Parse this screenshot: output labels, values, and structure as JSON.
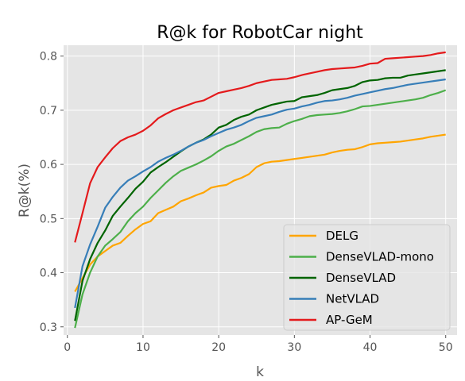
{
  "chart_data": {
    "type": "line",
    "title": "R@k for RobotCar night",
    "xlabel": "k",
    "ylabel": "R@k(%)",
    "xlim": [
      -0.5,
      51.5
    ],
    "ylim": [
      0.285,
      0.82
    ],
    "xticks": [
      0,
      10,
      20,
      30,
      40,
      50
    ],
    "yticks": [
      0.3,
      0.4,
      0.5,
      0.6,
      0.7,
      0.8
    ],
    "grid": true,
    "legend_position": "bottom-right",
    "x": [
      1,
      2,
      3,
      4,
      5,
      6,
      7,
      8,
      9,
      10,
      11,
      12,
      13,
      14,
      15,
      16,
      17,
      18,
      19,
      20,
      21,
      22,
      23,
      24,
      25,
      26,
      27,
      28,
      29,
      30,
      31,
      32,
      33,
      34,
      35,
      36,
      37,
      38,
      39,
      40,
      41,
      42,
      43,
      44,
      45,
      46,
      47,
      48,
      49,
      50
    ],
    "series": [
      {
        "name": "DELG",
        "color": "#ffa500",
        "values": [
          0.365,
          0.39,
          0.415,
          0.43,
          0.44,
          0.45,
          0.455,
          0.468,
          0.48,
          0.49,
          0.495,
          0.51,
          0.516,
          0.522,
          0.532,
          0.537,
          0.543,
          0.548,
          0.557,
          0.56,
          0.562,
          0.57,
          0.575,
          0.582,
          0.595,
          0.602,
          0.605,
          0.606,
          0.608,
          0.61,
          0.612,
          0.614,
          0.616,
          0.618,
          0.622,
          0.625,
          0.627,
          0.628,
          0.632,
          0.637,
          0.639,
          0.64,
          0.641,
          0.642,
          0.644,
          0.646,
          0.648,
          0.651,
          0.653,
          0.655
        ]
      },
      {
        "name": "DenseVLAD-mono",
        "color": "#4daf4a",
        "values": [
          0.298,
          0.36,
          0.4,
          0.43,
          0.45,
          0.462,
          0.475,
          0.495,
          0.51,
          0.522,
          0.538,
          0.552,
          0.566,
          0.578,
          0.588,
          0.594,
          0.6,
          0.607,
          0.615,
          0.625,
          0.633,
          0.638,
          0.645,
          0.652,
          0.66,
          0.665,
          0.667,
          0.668,
          0.675,
          0.68,
          0.684,
          0.689,
          0.691,
          0.692,
          0.693,
          0.695,
          0.698,
          0.702,
          0.707,
          0.708,
          0.71,
          0.712,
          0.714,
          0.716,
          0.718,
          0.72,
          0.723,
          0.728,
          0.732,
          0.737
        ]
      },
      {
        "name": "DenseVLAD",
        "color": "#006400",
        "values": [
          0.311,
          0.385,
          0.425,
          0.455,
          0.478,
          0.505,
          0.522,
          0.538,
          0.555,
          0.568,
          0.585,
          0.595,
          0.604,
          0.614,
          0.624,
          0.633,
          0.64,
          0.646,
          0.655,
          0.668,
          0.673,
          0.682,
          0.688,
          0.692,
          0.7,
          0.705,
          0.71,
          0.713,
          0.716,
          0.717,
          0.724,
          0.726,
          0.728,
          0.732,
          0.737,
          0.739,
          0.741,
          0.745,
          0.752,
          0.755,
          0.756,
          0.759,
          0.76,
          0.76,
          0.764,
          0.766,
          0.768,
          0.77,
          0.772,
          0.774
        ]
      },
      {
        "name": "NetVLAD",
        "color": "#377eb8",
        "values": [
          0.335,
          0.412,
          0.452,
          0.485,
          0.52,
          0.54,
          0.557,
          0.57,
          0.578,
          0.587,
          0.595,
          0.605,
          0.612,
          0.618,
          0.625,
          0.633,
          0.64,
          0.645,
          0.652,
          0.658,
          0.664,
          0.668,
          0.673,
          0.68,
          0.686,
          0.689,
          0.692,
          0.697,
          0.701,
          0.703,
          0.707,
          0.71,
          0.714,
          0.717,
          0.718,
          0.72,
          0.723,
          0.727,
          0.73,
          0.733,
          0.736,
          0.739,
          0.741,
          0.744,
          0.747,
          0.749,
          0.751,
          0.753,
          0.755,
          0.757
        ]
      },
      {
        "name": "AP-GeM",
        "color": "#e41a1c",
        "values": [
          0.456,
          0.51,
          0.565,
          0.595,
          0.613,
          0.63,
          0.643,
          0.65,
          0.655,
          0.662,
          0.672,
          0.685,
          0.693,
          0.7,
          0.705,
          0.71,
          0.715,
          0.718,
          0.725,
          0.732,
          0.735,
          0.738,
          0.741,
          0.745,
          0.75,
          0.753,
          0.756,
          0.757,
          0.758,
          0.761,
          0.765,
          0.768,
          0.771,
          0.774,
          0.776,
          0.777,
          0.778,
          0.779,
          0.782,
          0.786,
          0.787,
          0.795,
          0.796,
          0.797,
          0.798,
          0.799,
          0.8,
          0.802,
          0.805,
          0.807
        ]
      }
    ]
  }
}
